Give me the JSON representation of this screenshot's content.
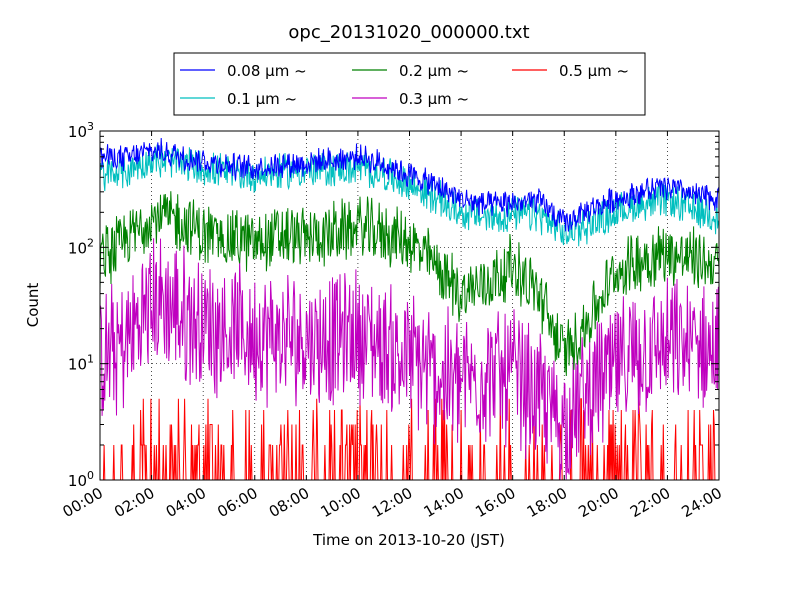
{
  "chart_data": {
    "type": "line",
    "title": "opc_20131020_000000.txt",
    "xlabel": "Time on 2013-10-20 (JST)",
    "ylabel": "Count",
    "y_scale": "log",
    "ylim": [
      1,
      1000
    ],
    "xlim_hours": [
      0,
      24
    ],
    "x_tick_labels": [
      "00:00",
      "02:00",
      "04:00",
      "06:00",
      "08:00",
      "10:00",
      "12:00",
      "14:00",
      "16:00",
      "18:00",
      "20:00",
      "22:00",
      "24:00"
    ],
    "y_tick_labels": [
      {
        "base": "10",
        "exp": "0"
      },
      {
        "base": "10",
        "exp": "1"
      },
      {
        "base": "10",
        "exp": "2"
      },
      {
        "base": "10",
        "exp": "3"
      }
    ],
    "grid": true,
    "legend_position": "top-center, above plot",
    "x_hours": [
      0,
      1,
      2,
      3,
      4,
      5,
      6,
      7,
      8,
      9,
      10,
      11,
      12,
      13,
      14,
      15,
      16,
      17,
      18,
      19,
      20,
      21,
      22,
      23,
      24
    ],
    "series": [
      {
        "name": "0.08 μm ~",
        "color": "#0000ff",
        "values": [
          600,
          580,
          680,
          620,
          560,
          500,
          480,
          520,
          530,
          560,
          600,
          520,
          420,
          340,
          260,
          230,
          240,
          250,
          160,
          210,
          260,
          300,
          330,
          280,
          260
        ]
      },
      {
        "name": "0.1 μm ~",
        "color": "#00bfbf",
        "values": [
          420,
          450,
          560,
          540,
          480,
          430,
          420,
          440,
          460,
          470,
          480,
          430,
          340,
          270,
          200,
          180,
          190,
          190,
          130,
          160,
          200,
          240,
          250,
          210,
          190
        ]
      },
      {
        "name": "0.2 μm ~",
        "color": "#008000",
        "values": [
          80,
          110,
          190,
          170,
          130,
          120,
          110,
          125,
          120,
          130,
          150,
          130,
          110,
          70,
          40,
          50,
          70,
          40,
          12,
          25,
          60,
          80,
          90,
          80,
          70
        ]
      },
      {
        "name": "0.3 μm ~",
        "color": "#bf00bf",
        "values": [
          10,
          15,
          35,
          28,
          22,
          20,
          17,
          16,
          17,
          16,
          18,
          14,
          11,
          8,
          7,
          8,
          8,
          5,
          3,
          6,
          9,
          12,
          14,
          14,
          13
        ]
      },
      {
        "name": "0.5 μm ~",
        "color": "#ff0000",
        "values": [
          1,
          1,
          2,
          2,
          2,
          1.5,
          1.5,
          1.5,
          1.5,
          1.5,
          1.5,
          1.2,
          1.2,
          1,
          1,
          1,
          1,
          1,
          1,
          1,
          1,
          1,
          1,
          1,
          1
        ]
      }
    ]
  }
}
